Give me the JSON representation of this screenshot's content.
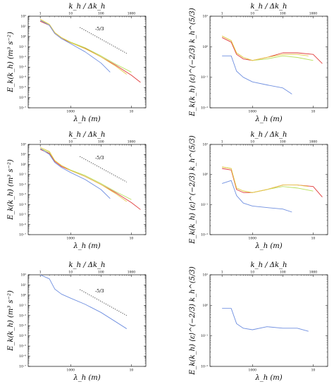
{
  "labels": {
    "top_axis_label": "k_h / Δk_h",
    "bottom_axis_label": "λ_h (m)",
    "ylabel_left": "E_k(k_h) (m³ s⁻²)",
    "ylabel_right": "E_k(k_h) ⟨ε⟩^(−2/3) k_h^(5/3)"
  },
  "colors": {
    "blue": "#6f8fe0",
    "red": "#e03a3a",
    "green": "#b8e05a",
    "yellow": "#e8c94a",
    "reference": "#333333"
  },
  "chart_data": [
    {
      "type": "line",
      "row": 0,
      "col": "left",
      "xscale": "log",
      "yscale": "log",
      "xlim": [
        0.4,
        3000
      ],
      "ylim": [
        -7,
        2
      ],
      "x_ticks_top": [
        "1",
        "10",
        "100",
        "1000"
      ],
      "x_ticks_bottom": [
        "1000",
        "10"
      ],
      "y_ticks": [
        "10²",
        "10¹",
        "10⁰",
        "10⁻¹",
        "10⁻²",
        "10⁻³",
        "10⁻⁴",
        "10⁻⁵",
        "10⁻⁶",
        "10⁻⁷"
      ],
      "reference_label": "-5/3",
      "reference_line": {
        "x": [
          20,
          700
        ],
        "logy": [
          0.9,
          -1.65
        ]
      },
      "series": [
        {
          "color": "red",
          "x": [
            1,
            2,
            3,
            5,
            10,
            30,
            100,
            300,
            1000,
            2000
          ],
          "logy": [
            1.5,
            1.1,
            0.3,
            -0.2,
            -0.6,
            -1.15,
            -2.0,
            -2.8,
            -3.8,
            -4.5
          ]
        },
        {
          "color": "green",
          "x": [
            1,
            2,
            3,
            5,
            10,
            30,
            100,
            300,
            1000
          ],
          "logy": [
            1.6,
            1.2,
            0.4,
            -0.1,
            -0.55,
            -1.1,
            -1.9,
            -2.7,
            -3.5
          ]
        },
        {
          "color": "yellow",
          "x": [
            1,
            2,
            3,
            5,
            10,
            30,
            100,
            300,
            700
          ],
          "logy": [
            1.7,
            1.2,
            0.4,
            -0.1,
            -0.6,
            -1.2,
            -2.0,
            -2.9,
            -3.7
          ]
        },
        {
          "color": "blue",
          "x": [
            1,
            2,
            3,
            5,
            10,
            30,
            100,
            200
          ],
          "logy": [
            1.6,
            1.1,
            0.3,
            -0.2,
            -0.7,
            -1.5,
            -2.6,
            -3.5
          ]
        }
      ]
    },
    {
      "type": "line",
      "row": 0,
      "col": "right",
      "xscale": "log",
      "yscale": "log",
      "xlim": [
        0.4,
        3000
      ],
      "ylim": [
        -2,
        1
      ],
      "x_ticks_top": [
        "1",
        "10",
        "100",
        "1000"
      ],
      "x_ticks_bottom": [
        "1000",
        "10"
      ],
      "y_ticks": [
        "10¹",
        "10⁰",
        "10⁻¹",
        "10⁻²"
      ],
      "series": [
        {
          "color": "red",
          "x": [
            1,
            2,
            3,
            5,
            10,
            30,
            100,
            300,
            1000,
            2000
          ],
          "logy": [
            0.3,
            0.15,
            -0.25,
            -0.4,
            -0.45,
            -0.35,
            -0.2,
            -0.2,
            -0.25,
            -0.55
          ]
        },
        {
          "color": "green",
          "x": [
            1,
            2,
            3,
            5,
            10,
            30,
            100,
            300,
            1000
          ],
          "logy": [
            0.35,
            0.2,
            -0.2,
            -0.35,
            -0.45,
            -0.4,
            -0.3,
            -0.35,
            -0.45
          ]
        },
        {
          "color": "yellow",
          "x": [
            1,
            2,
            3,
            5,
            10,
            30,
            100,
            300,
            700
          ],
          "logy": [
            0.35,
            0.2,
            -0.2,
            -0.35,
            -0.45,
            -0.35,
            -0.25,
            -0.25,
            -0.3
          ]
        },
        {
          "color": "blue",
          "x": [
            1,
            2,
            3,
            5,
            10,
            30,
            100,
            200
          ],
          "logy": [
            -0.3,
            -0.3,
            -0.8,
            -1.0,
            -1.15,
            -1.25,
            -1.35,
            -1.55
          ]
        }
      ]
    },
    {
      "type": "line",
      "row": 1,
      "col": "left",
      "xscale": "log",
      "yscale": "log",
      "xlim": [
        0.4,
        3000
      ],
      "ylim": [
        -7,
        2
      ],
      "x_ticks_top": [
        "1",
        "10",
        "100",
        "1000"
      ],
      "x_ticks_bottom": [
        "1000",
        "10"
      ],
      "y_ticks": [
        "10²",
        "10¹",
        "10⁰",
        "10⁻¹",
        "10⁻²",
        "10⁻³",
        "10⁻⁴",
        "10⁻⁵",
        "10⁻⁶",
        "10⁻⁷"
      ],
      "reference_label": "-5/3",
      "reference_line": {
        "x": [
          20,
          700
        ],
        "logy": [
          0.8,
          -1.75
        ]
      },
      "series": [
        {
          "color": "red",
          "x": [
            1,
            2,
            3,
            5,
            10,
            30,
            100,
            300,
            1000,
            2000
          ],
          "logy": [
            1.5,
            1.1,
            0.3,
            -0.2,
            -0.6,
            -1.2,
            -2.0,
            -2.8,
            -3.8,
            -4.5
          ]
        },
        {
          "color": "green",
          "x": [
            1,
            2,
            3,
            5,
            10,
            30,
            100,
            300,
            1000
          ],
          "logy": [
            1.6,
            1.2,
            0.4,
            -0.1,
            -0.55,
            -1.1,
            -1.9,
            -2.7,
            -3.5
          ]
        },
        {
          "color": "yellow",
          "x": [
            1,
            2,
            3,
            5,
            10,
            30,
            100,
            300,
            700
          ],
          "logy": [
            1.7,
            1.3,
            0.4,
            -0.1,
            -0.6,
            -1.2,
            -2.0,
            -2.9,
            -3.7
          ]
        },
        {
          "color": "blue",
          "x": [
            1,
            2,
            3,
            5,
            10,
            30,
            100,
            200
          ],
          "logy": [
            1.6,
            1.0,
            0.2,
            -0.3,
            -0.8,
            -1.5,
            -2.5,
            -3.4
          ]
        }
      ]
    },
    {
      "type": "line",
      "row": 1,
      "col": "right",
      "xscale": "log",
      "yscale": "log",
      "xlim": [
        0.4,
        3000
      ],
      "ylim": [
        -2,
        1
      ],
      "x_ticks_top": [
        "1",
        "10",
        "100",
        "1000"
      ],
      "x_ticks_bottom": [
        "1000",
        "10"
      ],
      "y_ticks": [
        "10¹",
        "10⁰",
        "10⁻¹",
        "10⁻²"
      ],
      "series": [
        {
          "color": "red",
          "x": [
            1,
            2,
            3,
            5,
            10,
            30,
            100,
            300,
            1000,
            2000
          ],
          "logy": [
            0.2,
            0.15,
            -0.5,
            -0.6,
            -0.6,
            -0.5,
            -0.35,
            -0.35,
            -0.4,
            -0.75
          ]
        },
        {
          "color": "green",
          "x": [
            1,
            2,
            3,
            5,
            10,
            30,
            100,
            300,
            1000
          ],
          "logy": [
            0.25,
            0.2,
            -0.45,
            -0.55,
            -0.6,
            -0.5,
            -0.4,
            -0.45,
            -0.55
          ]
        },
        {
          "color": "yellow",
          "x": [
            1,
            2,
            3,
            5,
            10,
            30,
            100,
            300,
            700
          ],
          "logy": [
            0.25,
            0.2,
            -0.45,
            -0.55,
            -0.6,
            -0.5,
            -0.35,
            -0.35,
            -0.4
          ]
        },
        {
          "color": "blue",
          "x": [
            1,
            2,
            3,
            5,
            10,
            30,
            100,
            200
          ],
          "logy": [
            -0.3,
            -0.2,
            -0.7,
            -0.95,
            -1.05,
            -1.1,
            -1.15,
            -1.25
          ]
        }
      ]
    },
    {
      "type": "line",
      "row": 2,
      "col": "left",
      "xscale": "log",
      "yscale": "log",
      "xlim": [
        0.4,
        3000
      ],
      "ylim": [
        -7,
        2
      ],
      "x_ticks_top": [
        "1",
        "10",
        "100",
        "1000"
      ],
      "x_ticks_bottom": [
        "1000",
        "10"
      ],
      "y_ticks": [
        "10²",
        "10¹",
        "10⁰",
        "10⁻¹",
        "10⁻²",
        "10⁻³",
        "10⁻⁴",
        "10⁻⁵",
        "10⁻⁶",
        "10⁻⁷"
      ],
      "reference_label": "-5/3",
      "reference_line": {
        "x": [
          20,
          700
        ],
        "logy": [
          0.55,
          -2.0
        ]
      },
      "series": [
        {
          "color": "blue",
          "x": [
            1,
            2,
            3,
            5,
            10,
            30,
            100,
            300,
            700
          ],
          "logy": [
            2.0,
            1.6,
            0.6,
            0.1,
            -0.3,
            -0.9,
            -1.7,
            -2.6,
            -3.3
          ]
        }
      ]
    },
    {
      "type": "line",
      "row": 2,
      "col": "right",
      "xscale": "log",
      "yscale": "log",
      "xlim": [
        0.4,
        3000
      ],
      "ylim": [
        -2,
        1
      ],
      "x_ticks_top": [
        "1",
        "10",
        "100",
        "1000"
      ],
      "x_ticks_bottom": [
        "1000",
        "10"
      ],
      "y_ticks": [
        "10¹",
        "10⁰",
        "10⁻¹",
        "10⁻²"
      ],
      "series": [
        {
          "color": "blue",
          "x": [
            1,
            2,
            3,
            5,
            10,
            30,
            100,
            300,
            700
          ],
          "logy": [
            -0.1,
            -0.1,
            -0.6,
            -0.75,
            -0.8,
            -0.7,
            -0.75,
            -0.75,
            -0.85
          ]
        }
      ]
    }
  ]
}
